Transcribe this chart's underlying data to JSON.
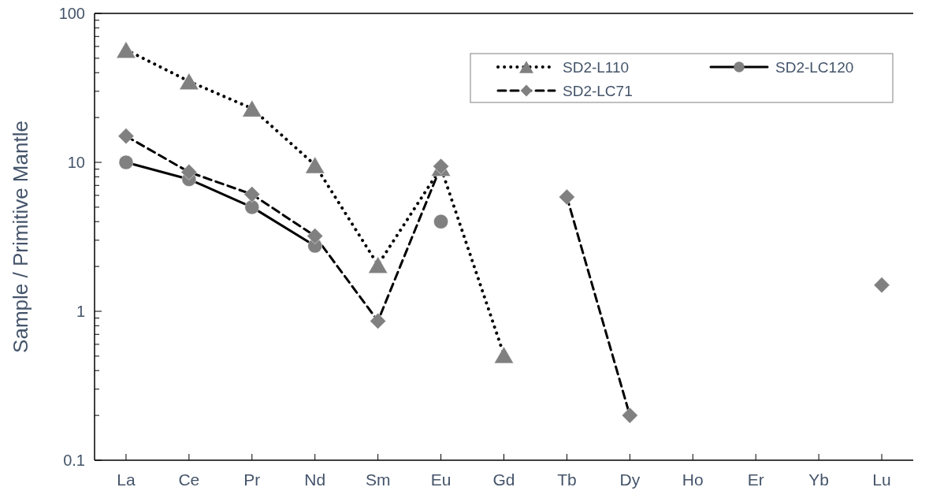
{
  "chart_data": {
    "type": "line",
    "ylabel": "Sample / Primitive Mantle",
    "log": true,
    "ylim": [
      0.1,
      100
    ],
    "yticks": [
      0.1,
      {
        "value": 0.2,
        "label": null
      },
      {
        "value": 0.3,
        "label": null
      },
      {
        "value": 0.4,
        "label": null
      },
      {
        "value": 0.5,
        "label": null
      },
      {
        "value": 0.6,
        "label": null
      },
      {
        "value": 0.7,
        "label": null
      },
      {
        "value": 0.8,
        "label": null
      },
      {
        "value": 0.9,
        "label": null
      },
      1,
      {
        "value": 2,
        "label": null
      },
      {
        "value": 3,
        "label": null
      },
      {
        "value": 4,
        "label": null
      },
      {
        "value": 5,
        "label": null
      },
      {
        "value": 6,
        "label": null
      },
      {
        "value": 7,
        "label": null
      },
      {
        "value": 8,
        "label": null
      },
      {
        "value": 9,
        "label": null
      },
      10,
      {
        "value": 20,
        "label": null
      },
      {
        "value": 30,
        "label": null
      },
      {
        "value": 40,
        "label": null
      },
      {
        "value": 50,
        "label": null
      },
      {
        "value": 60,
        "label": null
      },
      {
        "value": 70,
        "label": null
      },
      {
        "value": 80,
        "label": null
      },
      {
        "value": 90,
        "label": null
      },
      100
    ],
    "categories": [
      "La",
      "Ce",
      "Pr",
      "Nd",
      "Sm",
      "Eu",
      "Gd",
      "Tb",
      "Dy",
      "Ho",
      "Er",
      "Yb",
      "Lu"
    ],
    "legend": "top right",
    "grid": false,
    "series": [
      {
        "name": "SD2-L110",
        "color": "#808080",
        "marker": "triangle",
        "line_style": "dotted",
        "values": [
          57,
          35,
          23,
          9.6,
          2.05,
          9.2,
          0.51,
          null,
          null,
          null,
          null,
          null,
          null
        ]
      },
      {
        "name": "SD2-LC120",
        "color": "#808080",
        "marker": "circle",
        "line_style": "solid",
        "values": [
          10,
          7.7,
          5.0,
          2.75,
          null,
          4.0,
          null,
          null,
          null,
          null,
          null,
          null,
          null
        ]
      },
      {
        "name": "SD2-LC71",
        "color": "#808080",
        "marker": "diamond",
        "line_style": "dashed",
        "values": [
          15,
          8.6,
          6.1,
          3.2,
          0.86,
          9.4,
          null,
          5.85,
          0.2,
          null,
          null,
          null,
          1.5
        ]
      }
    ]
  }
}
